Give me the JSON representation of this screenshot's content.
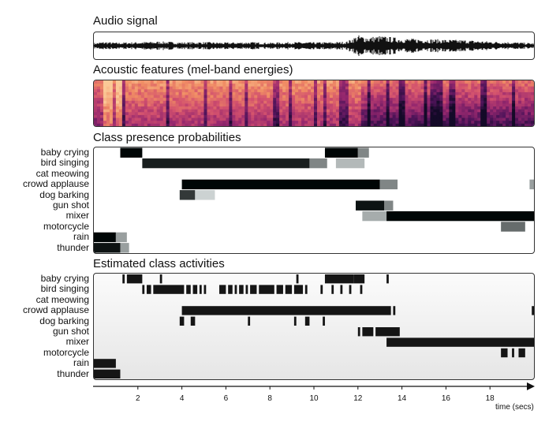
{
  "sections": {
    "audio": "Audio signal",
    "features": "Acoustic features (mel-band energies)",
    "probabilities": "Class presence probabilities",
    "activities": "Estimated class activities"
  },
  "classes": [
    "baby crying",
    "bird singing",
    "cat meowing",
    "crowd applause",
    "dog barking",
    "gun shot",
    "mixer",
    "motorcycle",
    "rain",
    "thunder"
  ],
  "axis": {
    "title": "time (secs)",
    "ticks": [
      "2",
      "4",
      "6",
      "8",
      "10",
      "12",
      "14",
      "16",
      "18"
    ]
  },
  "chart_data": {
    "type": "timeline",
    "x_range": [
      0,
      20
    ],
    "waveform_envelope": [
      [
        0,
        0.22
      ],
      [
        0.5,
        0.32
      ],
      [
        1,
        0.25
      ],
      [
        2,
        0.3
      ],
      [
        3,
        0.35
      ],
      [
        4,
        0.28
      ],
      [
        5,
        0.3
      ],
      [
        6,
        0.26
      ],
      [
        7,
        0.3
      ],
      [
        8,
        0.25
      ],
      [
        9,
        0.3
      ],
      [
        10,
        0.28
      ],
      [
        11,
        0.3
      ],
      [
        11.5,
        0.35
      ],
      [
        12,
        0.85
      ],
      [
        12.5,
        0.7
      ],
      [
        13,
        0.8
      ],
      [
        14,
        0.6
      ],
      [
        15,
        0.55
      ],
      [
        16,
        0.5
      ],
      [
        17,
        0.45
      ],
      [
        18,
        0.35
      ],
      [
        19,
        0.3
      ],
      [
        20,
        0.2
      ]
    ],
    "probabilities": {
      "baby crying": [
        [
          1.2,
          2.2,
          1.0
        ],
        [
          10.5,
          12.0,
          1.0
        ],
        [
          12.0,
          12.5,
          0.5
        ]
      ],
      "bird singing": [
        [
          2.2,
          9.8,
          0.9
        ],
        [
          9.8,
          10.6,
          0.5
        ],
        [
          11.0,
          12.3,
          0.3
        ]
      ],
      "cat meowing": [],
      "crowd applause": [
        [
          4.0,
          13.0,
          1.0
        ],
        [
          13.0,
          13.8,
          0.5
        ],
        [
          19.8,
          20.0,
          0.4
        ]
      ],
      "dog barking": [
        [
          3.9,
          4.6,
          0.8
        ],
        [
          4.6,
          5.5,
          0.2
        ]
      ],
      "gun shot": [
        [
          11.9,
          13.2,
          0.95
        ],
        [
          13.2,
          13.6,
          0.5
        ]
      ],
      "mixer": [
        [
          12.2,
          13.3,
          0.35
        ],
        [
          13.3,
          20.0,
          1.0
        ]
      ],
      "motorcycle": [
        [
          18.5,
          19.6,
          0.6
        ]
      ],
      "rain": [
        [
          0.0,
          1.0,
          1.0
        ],
        [
          1.0,
          1.5,
          0.4
        ]
      ],
      "thunder": [
        [
          0.0,
          1.2,
          0.95
        ],
        [
          1.2,
          1.6,
          0.4
        ]
      ]
    },
    "activities": {
      "baby crying": [
        [
          1.3,
          1.4
        ],
        [
          1.5,
          2.2
        ],
        [
          3.0,
          3.1
        ],
        [
          9.2,
          9.3
        ],
        [
          10.5,
          11.8
        ],
        [
          11.8,
          12.3
        ],
        [
          13.3,
          13.4
        ]
      ],
      "bird singing": [
        [
          2.2,
          2.3
        ],
        [
          2.4,
          2.6
        ],
        [
          2.7,
          4.1
        ],
        [
          4.2,
          4.4
        ],
        [
          4.5,
          4.7
        ],
        [
          4.8,
          4.9
        ],
        [
          5.0,
          5.1
        ],
        [
          5.7,
          6.0
        ],
        [
          6.1,
          6.3
        ],
        [
          6.4,
          6.5
        ],
        [
          6.6,
          6.8
        ],
        [
          6.9,
          7.0
        ],
        [
          7.1,
          7.4
        ],
        [
          7.5,
          8.2
        ],
        [
          8.3,
          8.6
        ],
        [
          8.7,
          9.0
        ],
        [
          9.1,
          9.5
        ],
        [
          9.6,
          9.7
        ],
        [
          10.3,
          10.4
        ],
        [
          10.8,
          10.9
        ],
        [
          11.2,
          11.3
        ],
        [
          11.6,
          11.7
        ],
        [
          12.1,
          12.2
        ]
      ],
      "cat meowing": [],
      "crowd applause": [
        [
          4.0,
          13.5
        ],
        [
          13.6,
          13.7
        ],
        [
          19.9,
          20.0
        ]
      ],
      "dog barking": [
        [
          3.9,
          4.1
        ],
        [
          4.4,
          4.6
        ],
        [
          7.0,
          7.1
        ],
        [
          9.1,
          9.2
        ],
        [
          9.6,
          9.8
        ],
        [
          10.4,
          10.5
        ]
      ],
      "gun shot": [
        [
          12.0,
          12.1
        ],
        [
          12.2,
          12.7
        ],
        [
          12.8,
          13.9
        ]
      ],
      "mixer": [
        [
          13.3,
          20.0
        ]
      ],
      "motorcycle": [
        [
          18.5,
          18.8
        ],
        [
          19.0,
          19.1
        ],
        [
          19.3,
          19.6
        ]
      ],
      "rain": [
        [
          0.0,
          1.0
        ]
      ],
      "thunder": [
        [
          0.0,
          1.2
        ]
      ]
    }
  }
}
